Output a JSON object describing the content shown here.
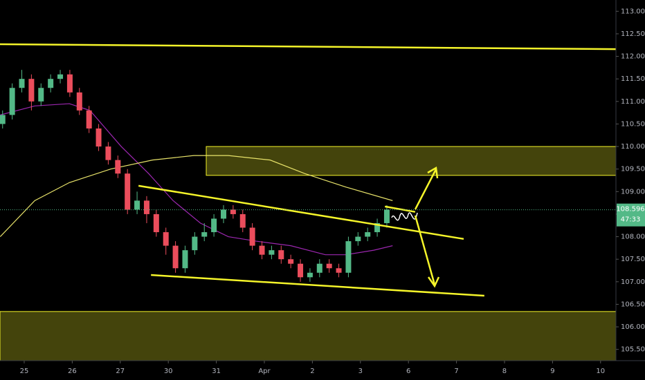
{
  "chart_data": {
    "type": "candlestick",
    "xlim": [
      -0.504,
      12.32
    ],
    "ylim": [
      105.25,
      113.25
    ],
    "xticks": [
      {
        "value": 0,
        "label": "25"
      },
      {
        "value": 1,
        "label": "26"
      },
      {
        "value": 2,
        "label": "27"
      },
      {
        "value": 3,
        "label": "30"
      },
      {
        "value": 4,
        "label": "31"
      },
      {
        "value": 5,
        "label": "Apr"
      },
      {
        "value": 6,
        "label": "2"
      },
      {
        "value": 7,
        "label": "3"
      },
      {
        "value": 8,
        "label": "6"
      },
      {
        "value": 9,
        "label": "7"
      },
      {
        "value": 10,
        "label": "8"
      },
      {
        "value": 11,
        "label": "9"
      },
      {
        "value": 12,
        "label": "10"
      }
    ],
    "yticks": [
      {
        "value": 105.5,
        "label": "105.500"
      },
      {
        "value": 106,
        "label": "106.000"
      },
      {
        "value": 106.5,
        "label": "106.500"
      },
      {
        "value": 107,
        "label": "107.000"
      },
      {
        "value": 107.5,
        "label": "107.500"
      },
      {
        "value": 108,
        "label": "108.000"
      },
      {
        "value": 108.5,
        "label": "108.500"
      },
      {
        "value": 109,
        "label": "109.000"
      },
      {
        "value": 109.5,
        "label": "109.500"
      },
      {
        "value": 110,
        "label": "110.000"
      },
      {
        "value": 110.5,
        "label": "110.500"
      },
      {
        "value": 111,
        "label": "111.000"
      },
      {
        "value": 111.5,
        "label": "111.500"
      },
      {
        "value": 112,
        "label": "112.000"
      },
      {
        "value": 112.5,
        "label": "112.500"
      },
      {
        "value": 113,
        "label": "113.000"
      }
    ],
    "up_color": "#53b987",
    "down_color": "#eb4d5c",
    "x": [
      -0.45,
      -0.25,
      -0.05,
      0.15,
      0.35,
      0.55,
      0.75,
      0.95,
      1.15,
      1.35,
      1.55,
      1.75,
      1.95,
      2.15,
      2.35,
      2.55,
      2.75,
      2.95,
      3.15,
      3.35,
      3.55,
      3.75,
      3.95,
      4.15,
      4.35,
      4.55,
      4.75,
      4.95,
      5.15,
      5.35,
      5.55,
      5.75,
      5.95,
      6.15,
      6.35,
      6.55,
      6.75,
      6.95,
      7.15,
      7.35,
      7.55
    ],
    "open": [
      110.5,
      110.7,
      111.3,
      111.5,
      111.0,
      111.3,
      111.5,
      111.6,
      111.2,
      110.8,
      110.4,
      110.0,
      109.7,
      109.4,
      108.6,
      108.8,
      108.5,
      108.1,
      107.8,
      107.3,
      107.7,
      108.0,
      108.1,
      108.4,
      108.6,
      108.5,
      108.2,
      107.8,
      107.6,
      107.7,
      107.5,
      107.4,
      107.1,
      107.2,
      107.4,
      107.3,
      107.2,
      107.9,
      108.0,
      108.1,
      108.3
    ],
    "high": [
      110.8,
      111.4,
      111.7,
      111.6,
      111.4,
      111.6,
      111.7,
      111.7,
      111.3,
      110.9,
      110.5,
      110.1,
      109.8,
      109.5,
      109.0,
      108.9,
      108.6,
      108.2,
      107.9,
      107.8,
      108.1,
      108.3,
      108.5,
      108.7,
      108.7,
      108.6,
      108.3,
      107.9,
      107.8,
      107.8,
      107.6,
      107.5,
      107.3,
      107.5,
      107.5,
      107.4,
      108.0,
      108.1,
      108.2,
      108.4,
      108.7
    ],
    "low": [
      110.4,
      110.6,
      111.2,
      110.8,
      110.9,
      111.2,
      111.4,
      111.1,
      110.7,
      110.3,
      109.9,
      109.6,
      109.3,
      108.5,
      108.5,
      108.3,
      108.0,
      107.6,
      107.2,
      107.2,
      107.6,
      107.9,
      108.0,
      108.3,
      108.4,
      108.1,
      107.7,
      107.5,
      107.5,
      107.4,
      107.3,
      107.0,
      107.0,
      107.1,
      107.2,
      107.1,
      107.1,
      107.8,
      107.9,
      108.0,
      108.2
    ],
    "close": [
      110.7,
      111.3,
      111.5,
      111.0,
      111.3,
      111.5,
      111.6,
      111.2,
      110.8,
      110.4,
      110.0,
      109.7,
      109.4,
      108.6,
      108.8,
      108.5,
      108.1,
      107.8,
      107.3,
      107.7,
      108.0,
      108.1,
      108.4,
      108.6,
      108.5,
      108.2,
      107.8,
      107.6,
      107.7,
      107.5,
      107.4,
      107.1,
      107.2,
      107.4,
      107.3,
      107.2,
      107.9,
      108.0,
      108.1,
      108.3,
      108.6
    ],
    "moving_averages": [
      {
        "color": "#9c27b0",
        "x": [
          -0.5,
          0.22,
          0.94,
          1.37,
          2.02,
          2.59,
          3.1,
          3.67,
          4.25,
          4.83,
          5.55,
          6.27,
          6.7,
          7.28,
          7.67
        ],
        "values": [
          110.7,
          110.9,
          110.95,
          110.8,
          110.0,
          109.4,
          108.8,
          108.3,
          108.0,
          107.9,
          107.8,
          107.6,
          107.6,
          107.7,
          107.8
        ]
      },
      {
        "color": "#e8e36a",
        "x": [
          -0.5,
          0.22,
          0.94,
          1.8,
          2.67,
          3.53,
          4.25,
          5.12,
          5.84,
          6.7,
          7.67
        ],
        "values": [
          108.0,
          108.8,
          109.2,
          109.5,
          109.7,
          109.8,
          109.8,
          109.7,
          109.4,
          109.1,
          108.8
        ]
      }
    ],
    "zones": [
      {
        "x": [
          3.79,
          12.32
        ],
        "from": 110.0,
        "to": 109.36
      },
      {
        "x": [
          -0.504,
          12.32
        ],
        "from": 106.34,
        "to": 105.25
      }
    ],
    "trendlines": [
      {
        "x": [
          -0.504,
          12.32
        ],
        "values": [
          112.27,
          112.16
        ]
      },
      {
        "x": [
          2.38,
          9.15
        ],
        "values": [
          109.13,
          107.95
        ]
      },
      {
        "x": [
          2.64,
          9.58
        ],
        "values": [
          107.15,
          106.69
        ]
      },
      {
        "x": [
          7.51,
          8.14
        ],
        "values": [
          108.67,
          108.55
        ]
      }
    ],
    "line_color": "#f5f52a",
    "current_price": 108.596,
    "current_price_label": "108.596",
    "countdown": "47:33",
    "price_color": "#53b987"
  }
}
